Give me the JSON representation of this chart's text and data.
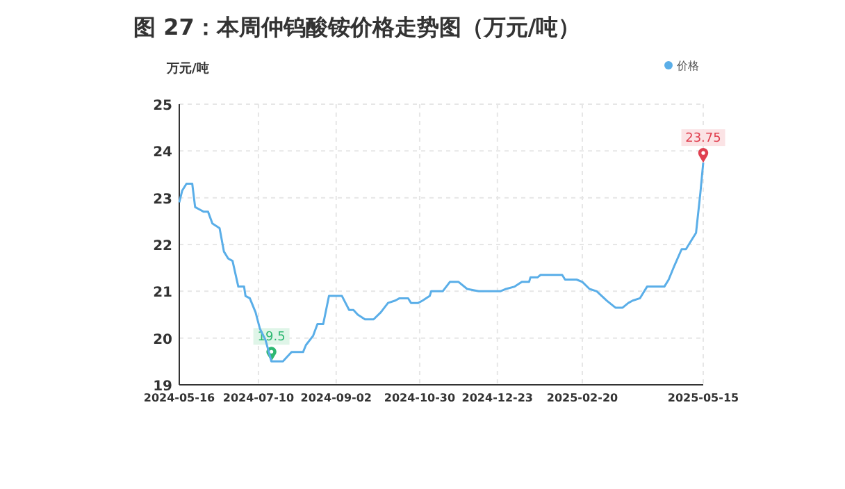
{
  "chart_data": {
    "type": "line",
    "title": "图 27：本周仲钨酸铵价格走势图（万元/吨）",
    "ylabel": "万元/吨",
    "x": [
      "2024-05-16",
      "2024-05-18",
      "2024-05-21",
      "2024-05-25",
      "2024-05-27",
      "2024-05-30",
      "2024-06-02",
      "2024-06-05",
      "2024-06-08",
      "2024-06-13",
      "2024-06-16",
      "2024-06-19",
      "2024-06-22",
      "2024-06-26",
      "2024-06-30",
      "2024-07-01",
      "2024-07-04",
      "2024-07-08",
      "2024-07-11",
      "2024-07-15",
      "2024-07-19",
      "2024-07-27",
      "2024-07-30",
      "2024-08-02",
      "2024-08-10",
      "2024-08-12",
      "2024-08-17",
      "2024-08-20",
      "2024-08-24",
      "2024-08-28",
      "2024-09-06",
      "2024-09-11",
      "2024-09-14",
      "2024-09-17",
      "2024-09-22",
      "2024-09-28",
      "2024-10-03",
      "2024-10-08",
      "2024-10-13",
      "2024-10-16",
      "2024-10-22",
      "2024-10-24",
      "2024-10-29",
      "2024-11-01",
      "2024-11-06",
      "2024-11-07",
      "2024-11-15",
      "2024-11-20",
      "2024-11-26",
      "2024-12-02",
      "2024-12-10",
      "2024-12-25",
      "2024-12-29",
      "2025-01-04",
      "2025-01-09",
      "2025-01-14",
      "2025-01-15",
      "2025-01-20",
      "2025-01-22",
      "2025-02-06",
      "2025-02-08",
      "2025-02-16",
      "2025-02-20",
      "2025-02-25",
      "2025-03-02",
      "2025-03-09",
      "2025-03-15",
      "2025-03-20",
      "2025-03-24",
      "2025-03-27",
      "2025-04-01",
      "2025-04-06",
      "2025-04-18",
      "2025-04-21",
      "2025-04-25",
      "2025-04-30",
      "2025-05-03",
      "2025-05-07",
      "2025-05-10",
      "2025-05-13",
      "2025-05-15"
    ],
    "series": [
      {
        "name": "价格",
        "color": "#5aaee8",
        "values": [
          22.9,
          23.15,
          23.3,
          23.3,
          22.8,
          22.75,
          22.7,
          22.7,
          22.45,
          22.35,
          21.85,
          21.7,
          21.65,
          21.1,
          21.1,
          20.9,
          20.85,
          20.55,
          20.2,
          19.95,
          19.5,
          19.5,
          19.6,
          19.7,
          19.7,
          19.85,
          20.05,
          20.3,
          20.3,
          20.9,
          20.9,
          20.6,
          20.6,
          20.5,
          20.4,
          20.4,
          20.55,
          20.75,
          20.8,
          20.85,
          20.85,
          20.75,
          20.75,
          20.8,
          20.9,
          21.0,
          21.0,
          21.2,
          21.2,
          21.05,
          21.0,
          21.0,
          21.05,
          21.1,
          21.2,
          21.2,
          21.3,
          21.3,
          21.35,
          21.35,
          21.25,
          21.25,
          21.2,
          21.05,
          21.0,
          20.8,
          20.65,
          20.65,
          20.75,
          20.8,
          20.85,
          21.1,
          21.1,
          21.25,
          21.55,
          21.9,
          21.9,
          22.1,
          22.25,
          23.1,
          23.75
        ]
      }
    ],
    "xlim": [
      "2024-05-16",
      "2025-05-15"
    ],
    "xticks": [
      "2024-05-16",
      "2024-07-10",
      "2024-09-02",
      "2024-10-30",
      "2024-12-23",
      "2025-02-20",
      "2025-05-15"
    ],
    "ylim": [
      19,
      25
    ],
    "yticks": [
      19,
      20,
      21,
      22,
      23,
      24,
      25
    ],
    "grid": true,
    "legend": "top right",
    "marker": "none",
    "line_style": "solid",
    "annotations": [
      {
        "text": "19.5",
        "x": "2024-07-19",
        "y": 19.5
      },
      {
        "text": "23.75",
        "x": "2025-05-15",
        "y": 23.75
      }
    ]
  }
}
